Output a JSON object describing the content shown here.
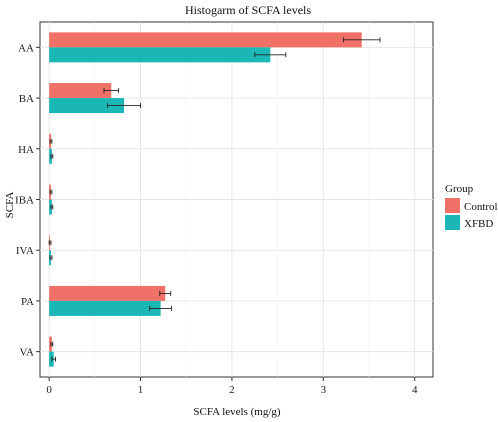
{
  "chart_data": {
    "type": "bar",
    "orientation": "horizontal",
    "title": "Histogarm of SCFA levels",
    "xlabel": "SCFA levels (mg/g)",
    "ylabel": "SCFA",
    "xlim": [
      -0.1,
      4.2
    ],
    "xticks": [
      "0",
      "1",
      "2",
      "3",
      "4"
    ],
    "xtick_values": [
      0,
      1,
      2,
      3,
      4
    ],
    "categories": [
      "AA",
      "BA",
      "HA",
      "IBA",
      "IVA",
      "PA",
      "VA"
    ],
    "series": [
      {
        "name": "Control",
        "color": "#F07167",
        "values": [
          3.42,
          0.68,
          0.02,
          0.02,
          0.01,
          1.27,
          0.03
        ],
        "errors": [
          0.2,
          0.08,
          0.01,
          0.01,
          0.01,
          0.06,
          0.01
        ]
      },
      {
        "name": "XFBD",
        "color": "#1BB6B6",
        "values": [
          2.42,
          0.82,
          0.03,
          0.03,
          0.02,
          1.22,
          0.05
        ],
        "errors": [
          0.17,
          0.18,
          0.01,
          0.01,
          0.01,
          0.12,
          0.02
        ]
      }
    ],
    "grid": true,
    "legend": {
      "title": "Group",
      "position": "right"
    }
  }
}
